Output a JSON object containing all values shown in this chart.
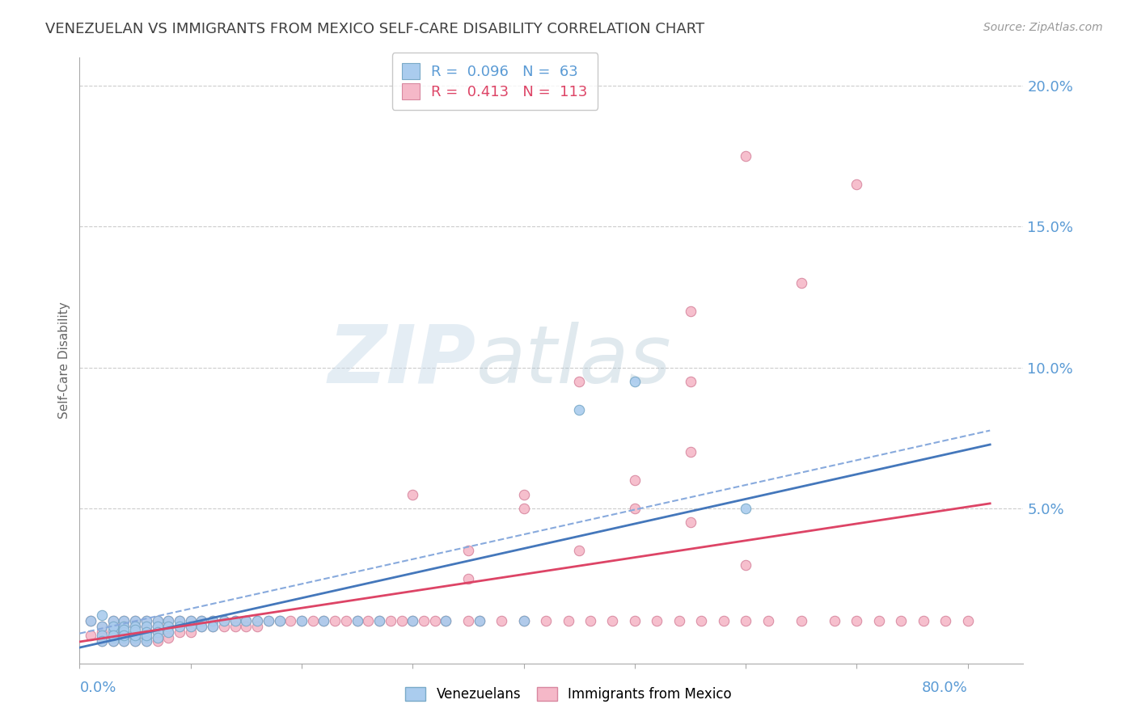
{
  "title": "VENEZUELAN VS IMMIGRANTS FROM MEXICO SELF-CARE DISABILITY CORRELATION CHART",
  "source": "Source: ZipAtlas.com",
  "ylabel": "Self-Care Disability",
  "xlim": [
    0.0,
    0.85
  ],
  "ylim": [
    -0.005,
    0.21
  ],
  "ytick_positions": [
    0.0,
    0.05,
    0.1,
    0.15,
    0.2
  ],
  "ytick_labels": [
    "",
    "5.0%",
    "10.0%",
    "15.0%",
    "20.0%"
  ],
  "xtick_positions": [
    0.0,
    0.1,
    0.2,
    0.3,
    0.4,
    0.5,
    0.6,
    0.7,
    0.8
  ],
  "background_color": "#ffffff",
  "grid_color": "#cccccc",
  "title_color": "#404040",
  "axis_label_color": "#5b9bd5",
  "venezuelan_color": "#aaccee",
  "venezuela_edge": "#7aaac8",
  "mexico_color": "#f5b8c8",
  "mexico_edge": "#d888a0",
  "trend_venezuela_solid_color": "#4477bb",
  "trend_venezuela_dashed_color": "#88aadd",
  "trend_mexico_color": "#dd4466",
  "watermark_zip": "ZIP",
  "watermark_atlas": "atlas",
  "legend_items": [
    {
      "label": "R =  0.096   N =  63",
      "color": "#aaccee",
      "edge": "#7aaac8",
      "text_color": "#5b9bd5"
    },
    {
      "label": "R =  0.413   N =  113",
      "color": "#f5b8c8",
      "edge": "#d888a0",
      "text_color": "#dd4466"
    }
  ],
  "venezuelan_x": [
    0.01,
    0.02,
    0.02,
    0.02,
    0.02,
    0.03,
    0.03,
    0.03,
    0.03,
    0.03,
    0.03,
    0.04,
    0.04,
    0.04,
    0.04,
    0.04,
    0.04,
    0.04,
    0.05,
    0.05,
    0.05,
    0.05,
    0.05,
    0.05,
    0.05,
    0.06,
    0.06,
    0.06,
    0.06,
    0.06,
    0.06,
    0.07,
    0.07,
    0.07,
    0.07,
    0.08,
    0.08,
    0.08,
    0.09,
    0.09,
    0.1,
    0.1,
    0.11,
    0.11,
    0.12,
    0.12,
    0.13,
    0.14,
    0.15,
    0.16,
    0.17,
    0.18,
    0.2,
    0.22,
    0.25,
    0.27,
    0.3,
    0.33,
    0.36,
    0.4,
    0.45,
    0.5,
    0.6
  ],
  "venezuelan_y": [
    0.01,
    0.008,
    0.012,
    0.005,
    0.003,
    0.01,
    0.007,
    0.004,
    0.003,
    0.008,
    0.005,
    0.01,
    0.008,
    0.006,
    0.004,
    0.003,
    0.007,
    0.005,
    0.01,
    0.008,
    0.006,
    0.004,
    0.003,
    0.005,
    0.007,
    0.01,
    0.008,
    0.006,
    0.004,
    0.003,
    0.005,
    0.01,
    0.008,
    0.006,
    0.004,
    0.01,
    0.008,
    0.006,
    0.01,
    0.008,
    0.01,
    0.008,
    0.01,
    0.008,
    0.01,
    0.008,
    0.01,
    0.01,
    0.01,
    0.01,
    0.01,
    0.01,
    0.01,
    0.01,
    0.01,
    0.01,
    0.01,
    0.01,
    0.01,
    0.01,
    0.085,
    0.095,
    0.05
  ],
  "mexico_x": [
    0.01,
    0.01,
    0.02,
    0.02,
    0.02,
    0.02,
    0.03,
    0.03,
    0.03,
    0.03,
    0.03,
    0.03,
    0.04,
    0.04,
    0.04,
    0.04,
    0.04,
    0.04,
    0.05,
    0.05,
    0.05,
    0.05,
    0.05,
    0.05,
    0.06,
    0.06,
    0.06,
    0.06,
    0.06,
    0.07,
    0.07,
    0.07,
    0.07,
    0.07,
    0.08,
    0.08,
    0.08,
    0.08,
    0.09,
    0.09,
    0.09,
    0.1,
    0.1,
    0.1,
    0.11,
    0.11,
    0.12,
    0.12,
    0.13,
    0.13,
    0.14,
    0.14,
    0.15,
    0.15,
    0.16,
    0.16,
    0.17,
    0.18,
    0.19,
    0.2,
    0.21,
    0.22,
    0.23,
    0.24,
    0.25,
    0.26,
    0.27,
    0.28,
    0.29,
    0.3,
    0.31,
    0.32,
    0.33,
    0.35,
    0.36,
    0.38,
    0.4,
    0.42,
    0.44,
    0.46,
    0.48,
    0.5,
    0.52,
    0.54,
    0.56,
    0.58,
    0.6,
    0.62,
    0.65,
    0.68,
    0.7,
    0.72,
    0.74,
    0.76,
    0.78,
    0.8,
    0.55,
    0.6,
    0.65,
    0.7,
    0.4,
    0.45,
    0.5,
    0.55,
    0.35,
    0.4,
    0.45,
    0.5,
    0.55,
    0.6,
    0.3,
    0.35,
    0.55
  ],
  "mexico_y": [
    0.01,
    0.005,
    0.008,
    0.006,
    0.004,
    0.003,
    0.01,
    0.008,
    0.006,
    0.004,
    0.003,
    0.005,
    0.01,
    0.008,
    0.006,
    0.004,
    0.003,
    0.005,
    0.01,
    0.008,
    0.006,
    0.004,
    0.003,
    0.005,
    0.01,
    0.008,
    0.006,
    0.004,
    0.003,
    0.01,
    0.008,
    0.006,
    0.004,
    0.003,
    0.01,
    0.008,
    0.006,
    0.004,
    0.01,
    0.008,
    0.006,
    0.01,
    0.008,
    0.006,
    0.01,
    0.008,
    0.01,
    0.008,
    0.01,
    0.008,
    0.01,
    0.008,
    0.01,
    0.008,
    0.01,
    0.008,
    0.01,
    0.01,
    0.01,
    0.01,
    0.01,
    0.01,
    0.01,
    0.01,
    0.01,
    0.01,
    0.01,
    0.01,
    0.01,
    0.01,
    0.01,
    0.01,
    0.01,
    0.01,
    0.01,
    0.01,
    0.01,
    0.01,
    0.01,
    0.01,
    0.01,
    0.01,
    0.01,
    0.01,
    0.01,
    0.01,
    0.01,
    0.01,
    0.01,
    0.01,
    0.01,
    0.01,
    0.01,
    0.01,
    0.01,
    0.01,
    0.12,
    0.175,
    0.13,
    0.165,
    0.055,
    0.095,
    0.06,
    0.07,
    0.025,
    0.05,
    0.035,
    0.05,
    0.045,
    0.03,
    0.055,
    0.035,
    0.095
  ]
}
